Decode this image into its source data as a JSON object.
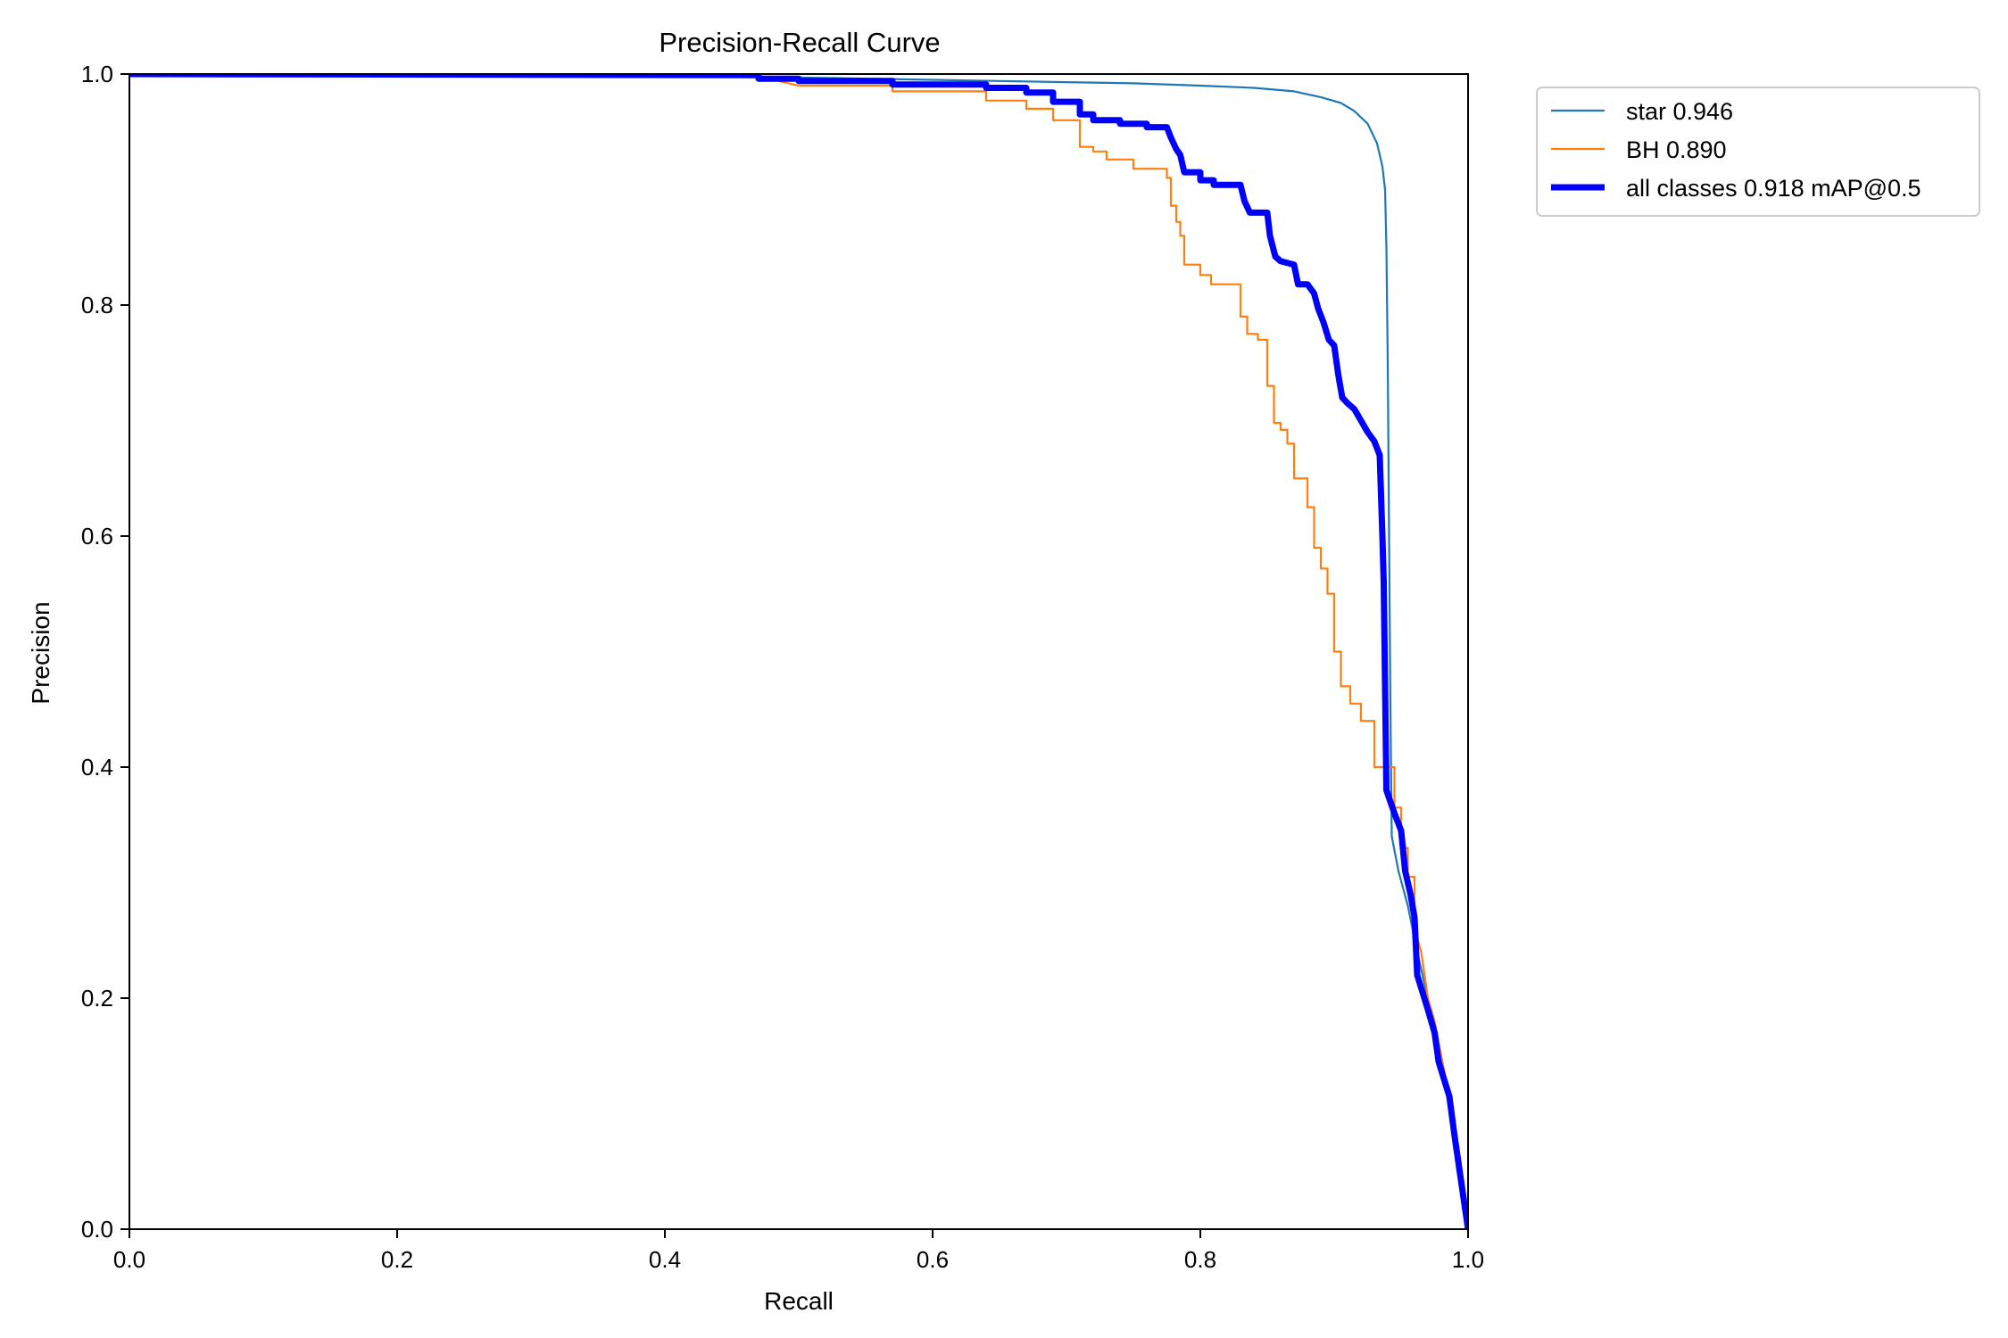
{
  "chart_data": {
    "type": "line",
    "title": "Precision-Recall Curve",
    "xlabel": "Recall",
    "ylabel": "Precision",
    "xlim": [
      0,
      1
    ],
    "ylim": [
      0,
      1
    ],
    "grid": false,
    "legend_position": "outside-top-right",
    "x_ticks": [
      "0.0",
      "0.2",
      "0.4",
      "0.6",
      "0.8",
      "1.0"
    ],
    "y_ticks": [
      "0.0",
      "0.2",
      "0.4",
      "0.6",
      "0.8",
      "1.0"
    ],
    "series": [
      {
        "name": "star 0.946",
        "color": "#1f77b4",
        "points": [
          [
            0.0,
            1.0
          ],
          [
            0.3,
            0.999
          ],
          [
            0.5,
            0.997
          ],
          [
            0.6,
            0.995
          ],
          [
            0.65,
            0.994
          ],
          [
            0.7,
            0.993
          ],
          [
            0.75,
            0.992
          ],
          [
            0.8,
            0.99
          ],
          [
            0.84,
            0.988
          ],
          [
            0.87,
            0.985
          ],
          [
            0.89,
            0.98
          ],
          [
            0.905,
            0.975
          ],
          [
            0.915,
            0.968
          ],
          [
            0.925,
            0.957
          ],
          [
            0.932,
            0.94
          ],
          [
            0.936,
            0.92
          ],
          [
            0.938,
            0.9
          ],
          [
            0.939,
            0.85
          ],
          [
            0.94,
            0.75
          ],
          [
            0.941,
            0.6
          ],
          [
            0.942,
            0.45
          ],
          [
            0.943,
            0.34
          ],
          [
            0.948,
            0.31
          ],
          [
            0.955,
            0.28
          ],
          [
            0.962,
            0.24
          ],
          [
            0.97,
            0.2
          ],
          [
            0.978,
            0.16
          ],
          [
            0.985,
            0.12
          ],
          [
            0.99,
            0.08
          ],
          [
            0.995,
            0.04
          ],
          [
            1.0,
            0.0
          ]
        ]
      },
      {
        "name": "BH 0.890",
        "color": "#ff7f0e",
        "points": [
          [
            0.0,
            1.0
          ],
          [
            0.47,
            0.998
          ],
          [
            0.5,
            0.99
          ],
          [
            0.57,
            0.99
          ],
          [
            0.57,
            0.985
          ],
          [
            0.64,
            0.985
          ],
          [
            0.64,
            0.977
          ],
          [
            0.67,
            0.977
          ],
          [
            0.67,
            0.97
          ],
          [
            0.69,
            0.97
          ],
          [
            0.69,
            0.96
          ],
          [
            0.71,
            0.96
          ],
          [
            0.71,
            0.937
          ],
          [
            0.72,
            0.937
          ],
          [
            0.72,
            0.933
          ],
          [
            0.73,
            0.933
          ],
          [
            0.73,
            0.926
          ],
          [
            0.75,
            0.926
          ],
          [
            0.75,
            0.918
          ],
          [
            0.775,
            0.918
          ],
          [
            0.775,
            0.91
          ],
          [
            0.778,
            0.91
          ],
          [
            0.778,
            0.886
          ],
          [
            0.782,
            0.886
          ],
          [
            0.782,
            0.872
          ],
          [
            0.785,
            0.872
          ],
          [
            0.785,
            0.86
          ],
          [
            0.788,
            0.86
          ],
          [
            0.788,
            0.835
          ],
          [
            0.8,
            0.835
          ],
          [
            0.8,
            0.826
          ],
          [
            0.808,
            0.826
          ],
          [
            0.808,
            0.818
          ],
          [
            0.83,
            0.818
          ],
          [
            0.83,
            0.79
          ],
          [
            0.835,
            0.79
          ],
          [
            0.835,
            0.775
          ],
          [
            0.843,
            0.775
          ],
          [
            0.843,
            0.77
          ],
          [
            0.85,
            0.77
          ],
          [
            0.85,
            0.73
          ],
          [
            0.855,
            0.73
          ],
          [
            0.855,
            0.698
          ],
          [
            0.86,
            0.698
          ],
          [
            0.86,
            0.692
          ],
          [
            0.865,
            0.692
          ],
          [
            0.865,
            0.68
          ],
          [
            0.87,
            0.68
          ],
          [
            0.87,
            0.65
          ],
          [
            0.88,
            0.65
          ],
          [
            0.88,
            0.625
          ],
          [
            0.885,
            0.625
          ],
          [
            0.885,
            0.59
          ],
          [
            0.89,
            0.59
          ],
          [
            0.89,
            0.572
          ],
          [
            0.895,
            0.572
          ],
          [
            0.895,
            0.55
          ],
          [
            0.9,
            0.55
          ],
          [
            0.9,
            0.5
          ],
          [
            0.905,
            0.5
          ],
          [
            0.905,
            0.47
          ],
          [
            0.912,
            0.47
          ],
          [
            0.912,
            0.455
          ],
          [
            0.92,
            0.455
          ],
          [
            0.92,
            0.44
          ],
          [
            0.93,
            0.44
          ],
          [
            0.93,
            0.4
          ],
          [
            0.945,
            0.4
          ],
          [
            0.945,
            0.365
          ],
          [
            0.95,
            0.365
          ],
          [
            0.95,
            0.33
          ],
          [
            0.955,
            0.33
          ],
          [
            0.955,
            0.305
          ],
          [
            0.96,
            0.305
          ],
          [
            0.96,
            0.26
          ],
          [
            0.965,
            0.24
          ],
          [
            0.97,
            0.2
          ],
          [
            0.975,
            0.18
          ],
          [
            0.98,
            0.15
          ],
          [
            0.985,
            0.12
          ],
          [
            0.99,
            0.08
          ],
          [
            0.995,
            0.04
          ],
          [
            1.0,
            0.0
          ]
        ]
      },
      {
        "name": "all classes 0.918 mAP@0.5",
        "color": "#0000ff",
        "points": [
          [
            0.0,
            1.0
          ],
          [
            0.47,
            0.999
          ],
          [
            0.47,
            0.996
          ],
          [
            0.5,
            0.996
          ],
          [
            0.5,
            0.994
          ],
          [
            0.57,
            0.994
          ],
          [
            0.57,
            0.991
          ],
          [
            0.64,
            0.991
          ],
          [
            0.64,
            0.988
          ],
          [
            0.67,
            0.988
          ],
          [
            0.67,
            0.984
          ],
          [
            0.69,
            0.984
          ],
          [
            0.69,
            0.976
          ],
          [
            0.71,
            0.976
          ],
          [
            0.71,
            0.965
          ],
          [
            0.72,
            0.965
          ],
          [
            0.72,
            0.96
          ],
          [
            0.74,
            0.96
          ],
          [
            0.74,
            0.957
          ],
          [
            0.76,
            0.957
          ],
          [
            0.76,
            0.954
          ],
          [
            0.775,
            0.954
          ],
          [
            0.778,
            0.945
          ],
          [
            0.782,
            0.935
          ],
          [
            0.785,
            0.93
          ],
          [
            0.788,
            0.915
          ],
          [
            0.8,
            0.915
          ],
          [
            0.8,
            0.908
          ],
          [
            0.81,
            0.908
          ],
          [
            0.81,
            0.904
          ],
          [
            0.83,
            0.904
          ],
          [
            0.833,
            0.89
          ],
          [
            0.837,
            0.88
          ],
          [
            0.85,
            0.88
          ],
          [
            0.852,
            0.86
          ],
          [
            0.856,
            0.842
          ],
          [
            0.86,
            0.838
          ],
          [
            0.87,
            0.835
          ],
          [
            0.873,
            0.818
          ],
          [
            0.88,
            0.818
          ],
          [
            0.885,
            0.81
          ],
          [
            0.888,
            0.797
          ],
          [
            0.892,
            0.785
          ],
          [
            0.896,
            0.77
          ],
          [
            0.9,
            0.765
          ],
          [
            0.903,
            0.74
          ],
          [
            0.906,
            0.72
          ],
          [
            0.91,
            0.715
          ],
          [
            0.915,
            0.71
          ],
          [
            0.92,
            0.7
          ],
          [
            0.925,
            0.69
          ],
          [
            0.93,
            0.682
          ],
          [
            0.934,
            0.67
          ],
          [
            0.936,
            0.6
          ],
          [
            0.937,
            0.56
          ],
          [
            0.938,
            0.47
          ],
          [
            0.939,
            0.38
          ],
          [
            0.945,
            0.36
          ],
          [
            0.95,
            0.345
          ],
          [
            0.953,
            0.31
          ],
          [
            0.957,
            0.29
          ],
          [
            0.96,
            0.27
          ],
          [
            0.962,
            0.22
          ],
          [
            0.966,
            0.205
          ],
          [
            0.97,
            0.19
          ],
          [
            0.975,
            0.17
          ],
          [
            0.978,
            0.145
          ],
          [
            0.982,
            0.13
          ],
          [
            0.986,
            0.115
          ],
          [
            0.99,
            0.08
          ],
          [
            0.995,
            0.04
          ],
          [
            1.0,
            0.0
          ]
        ]
      }
    ]
  }
}
